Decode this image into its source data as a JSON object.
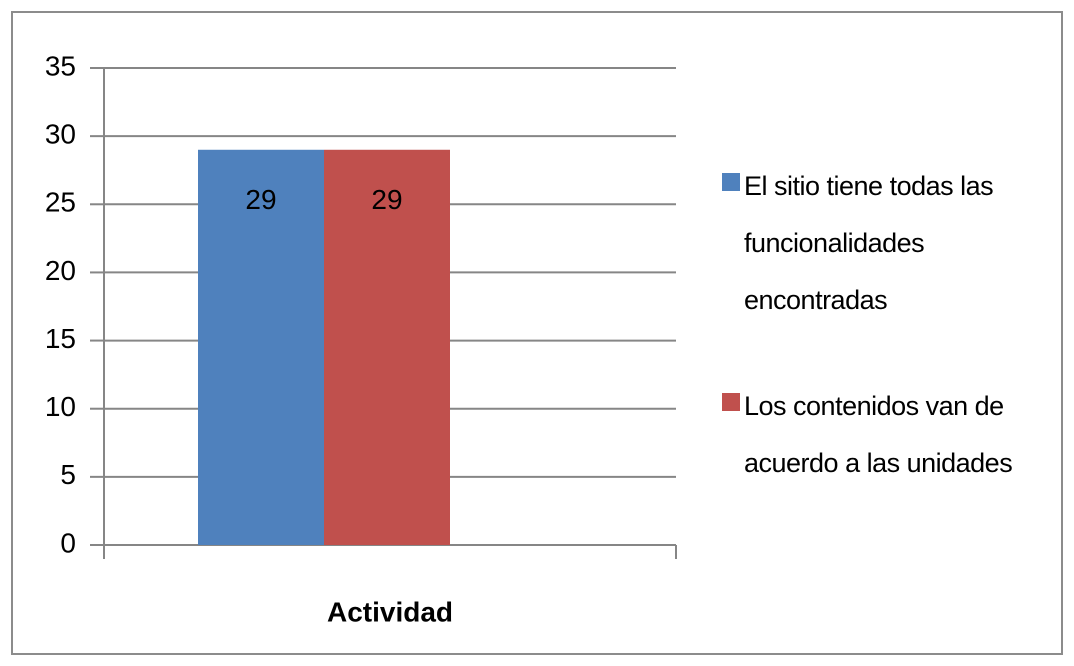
{
  "chart_data": {
    "type": "bar",
    "categories": [
      "Actividad"
    ],
    "series": [
      {
        "name": "El sitio tiene todas las funcionalidades encontradas",
        "color": "#4f81bd",
        "values": [
          29
        ]
      },
      {
        "name": "Los contenidos van de acuerdo a las unidades",
        "color": "#c0504d",
        "values": [
          29
        ]
      }
    ],
    "ylim": [
      0,
      35
    ],
    "yticks": [
      0,
      5,
      10,
      15,
      20,
      25,
      30,
      35
    ],
    "grid": true,
    "legend": "right",
    "data_labels": true
  }
}
